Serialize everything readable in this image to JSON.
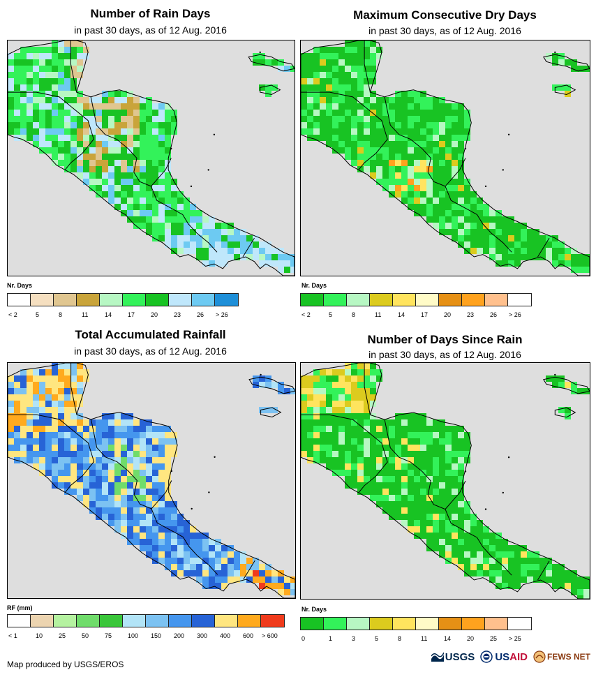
{
  "panels": [
    {
      "title": "Number of Rain Days",
      "subtitle": "in past 30 days, as of 12 Aug. 2016",
      "legend_title": "Nr. Days",
      "legend_labels": [
        "< 2",
        "5",
        "8",
        "11",
        "14",
        "17",
        "20",
        "23",
        "26",
        "> 26"
      ],
      "legend_colors": [
        "#ffffff",
        "#f5dfc0",
        "#e0c690",
        "#c9a43a",
        "#b7f7c3",
        "#33f25a",
        "#18c323",
        "#bfe7fb",
        "#6dcaf2",
        "#1e8fd8"
      ]
    },
    {
      "title": "Maximum Consecutive Dry Days",
      "subtitle": "in past 30 days, as of 12 Aug. 2016",
      "legend_title": "Nr. Days",
      "legend_labels": [
        "< 2",
        "5",
        "8",
        "11",
        "14",
        "17",
        "20",
        "23",
        "26",
        "> 26"
      ],
      "legend_colors": [
        "#18c323",
        "#33f25a",
        "#b7f7c3",
        "#dccb1e",
        "#ffe45e",
        "#fffbc7",
        "#e69015",
        "#ffa21e",
        "#ffc08d",
        "#ffffff"
      ]
    },
    {
      "title": "Total Accumulated Rainfall",
      "subtitle": "in past 30 days, as of 12 Aug. 2016",
      "legend_title": "RF (mm)",
      "legend_labels": [
        "< 1",
        "10",
        "25",
        "50",
        "75",
        "100",
        "150",
        "200",
        "300",
        "400",
        "600",
        "> 600"
      ],
      "legend_colors": [
        "#ffffff",
        "#ecd4b0",
        "#b5f2a0",
        "#70dc6b",
        "#3ac63a",
        "#b2e4f7",
        "#7cc2f2",
        "#4596ee",
        "#2763d6",
        "#ffe680",
        "#ffaa1e",
        "#f03b1c"
      ]
    },
    {
      "title": "Number of Days Since Rain",
      "subtitle": "in past 30 days, as of 12 Aug. 2016",
      "legend_title": "Nr. Days",
      "legend_labels": [
        "0",
        "1",
        "3",
        "5",
        "8",
        "11",
        "14",
        "20",
        "25",
        "> 25"
      ],
      "legend_colors": [
        "#18c323",
        "#33f25a",
        "#b7f7c3",
        "#dccb1e",
        "#ffe45e",
        "#fffbc7",
        "#e69015",
        "#ffa21e",
        "#ffc08d",
        "#ffffff"
      ]
    }
  ],
  "map_colors": {
    "ocean": "#dedede",
    "border": "#000000"
  },
  "footer": {
    "credit": "Map produced by USGS/EROS",
    "logo_usgs": "USGS",
    "logo_usaid_us": "US",
    "logo_usaid_aid": "AID",
    "logo_fews": "FEWS NET"
  }
}
